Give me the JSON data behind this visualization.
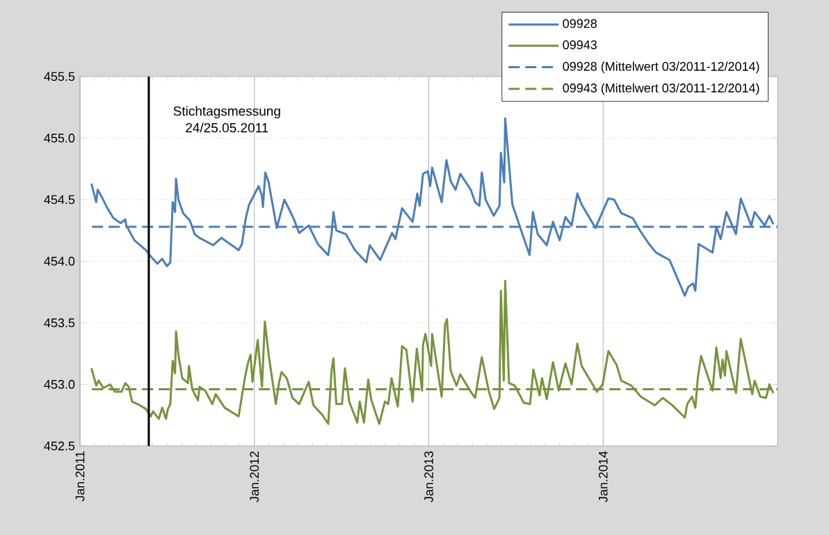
{
  "chart_data": {
    "type": "line",
    "xlim": [
      "2011-01-01",
      "2015-01-01"
    ],
    "xticks": [
      {
        "value": "2011-01-01",
        "label": "Jan.2011"
      },
      {
        "value": "2012-01-01",
        "label": "Jan.2012"
      },
      {
        "value": "2013-01-01",
        "label": "Jan.2013"
      },
      {
        "value": "2014-01-01",
        "label": "Jan.2014"
      }
    ],
    "ylim": [
      452.5,
      455.5
    ],
    "yticks": [
      452.5,
      {
        "value": 453,
        "label": "453.0"
      },
      453.5,
      {
        "value": 454,
        "label": "454.0"
      },
      454.5,
      {
        "value": 455,
        "label": "455.0"
      },
      455.5
    ],
    "grid": true,
    "legend": "top right",
    "ref_lines": [
      {
        "axis": "x",
        "value": "2011-05-25",
        "label": "Stichtagsmessung 24/25.05.2011",
        "color": "#000000"
      }
    ],
    "series": [
      {
        "name": "09928",
        "color": "#4a7ebb",
        "line_style": "solid",
        "x": [
          "2011-01-25",
          "2011-02-04",
          "2011-02-07",
          "2011-02-16",
          "2011-02-26",
          "2011-03-12",
          "2011-03-27",
          "2011-04-06",
          "2011-04-08",
          "2011-04-25",
          "2011-05-19",
          "2011-05-29",
          "2011-06-12",
          "2011-06-22",
          "2011-07-02",
          "2011-07-09",
          "2011-07-14",
          "2011-07-19",
          "2011-07-21",
          "2011-07-26",
          "2011-08-05",
          "2011-08-19",
          "2011-08-29",
          "2011-09-08",
          "2011-10-07",
          "2011-10-24",
          "2011-11-29",
          "2011-12-06",
          "2011-12-14",
          "2011-12-21",
          "2012-01-10",
          "2012-01-17",
          "2012-01-19",
          "2012-01-24",
          "2012-01-31",
          "2012-02-17",
          "2012-03-04",
          "2012-03-23",
          "2012-04-04",
          "2012-04-24",
          "2012-05-13",
          "2012-06-04",
          "2012-06-11",
          "2012-06-15",
          "2012-06-21",
          "2012-07-11",
          "2012-07-30",
          "2012-08-23",
          "2012-08-30",
          "2012-09-21",
          "2012-10-16",
          "2012-10-23",
          "2012-11-06",
          "2012-11-28",
          "2012-12-08",
          "2012-12-13",
          "2012-12-20",
          "2012-12-30",
          "2013-01-04",
          "2013-01-08",
          "2013-01-28",
          "2013-02-07",
          "2013-02-16",
          "2013-02-26",
          "2013-03-08",
          "2013-03-30",
          "2013-04-08",
          "2013-04-17",
          "2013-04-22",
          "2013-04-30",
          "2013-05-17",
          "2013-05-29",
          "2013-06-01",
          "2013-06-08",
          "2013-06-10",
          "2013-06-25",
          "2013-07-31",
          "2013-08-07",
          "2013-08-17",
          "2013-09-05",
          "2013-09-18",
          "2013-10-02",
          "2013-10-14",
          "2013-10-27",
          "2013-11-08",
          "2013-11-17",
          "2013-12-16",
          "2014-01-12",
          "2014-01-24",
          "2014-02-08",
          "2014-03-04",
          "2014-03-19",
          "2014-04-07",
          "2014-04-22",
          "2014-05-20",
          "2014-06-21",
          "2014-06-28",
          "2014-07-08",
          "2014-07-13",
          "2014-07-20",
          "2014-08-18",
          "2014-08-26",
          "2014-09-04",
          "2014-09-16",
          "2014-10-06",
          "2014-10-16",
          "2014-11-07",
          "2014-11-14",
          "2014-12-05",
          "2014-12-15",
          "2014-12-23"
        ],
        "values": [
          454.63,
          454.48,
          454.58,
          454.52,
          454.44,
          454.35,
          454.31,
          454.34,
          454.29,
          454.17,
          454.09,
          454.04,
          453.98,
          454.02,
          453.96,
          453.99,
          454.48,
          454.4,
          454.67,
          454.5,
          454.39,
          454.33,
          454.22,
          454.19,
          454.13,
          454.19,
          454.09,
          454.14,
          454.35,
          454.46,
          454.61,
          454.53,
          454.44,
          454.72,
          454.64,
          454.27,
          454.5,
          454.35,
          454.23,
          454.29,
          454.14,
          454.05,
          454.22,
          454.4,
          454.25,
          454.22,
          454.09,
          453.99,
          454.13,
          454.01,
          454.23,
          454.18,
          454.43,
          454.32,
          454.55,
          454.45,
          454.71,
          454.73,
          454.61,
          454.76,
          454.48,
          454.82,
          454.65,
          454.58,
          454.71,
          454.58,
          454.48,
          454.45,
          454.72,
          454.5,
          454.37,
          454.45,
          454.88,
          454.64,
          455.16,
          454.46,
          454.05,
          454.4,
          454.22,
          454.13,
          454.32,
          454.17,
          454.36,
          454.29,
          454.55,
          454.46,
          454.27,
          454.51,
          454.5,
          454.39,
          454.35,
          454.25,
          454.14,
          454.07,
          454.01,
          453.72,
          453.79,
          453.82,
          453.76,
          454.14,
          454.07,
          454.28,
          454.18,
          454.4,
          454.22,
          454.51,
          454.29,
          454.4,
          454.29,
          454.37,
          454.3
        ]
      },
      {
        "name": "09943",
        "color": "#77933c",
        "line_style": "solid",
        "x": [
          "2011-01-25",
          "2011-02-04",
          "2011-02-09",
          "2011-02-19",
          "2011-03-05",
          "2011-03-15",
          "2011-03-29",
          "2011-04-06",
          "2011-04-13",
          "2011-04-20",
          "2011-05-02",
          "2011-05-19",
          "2011-05-29",
          "2011-06-03",
          "2011-06-15",
          "2011-06-22",
          "2011-06-30",
          "2011-07-04",
          "2011-07-09",
          "2011-07-14",
          "2011-07-19",
          "2011-07-21",
          "2011-07-26",
          "2011-08-03",
          "2011-08-15",
          "2011-08-17",
          "2011-08-24",
          "2011-09-05",
          "2011-09-08",
          "2011-09-20",
          "2011-10-05",
          "2011-10-12",
          "2011-10-31",
          "2011-11-29",
          "2011-12-12",
          "2011-12-19",
          "2011-12-24",
          "2011-12-28",
          "2012-01-08",
          "2012-01-17",
          "2012-01-23",
          "2012-01-31",
          "2012-02-15",
          "2012-02-22",
          "2012-02-27",
          "2012-03-09",
          "2012-03-21",
          "2012-04-04",
          "2012-04-24",
          "2012-05-04",
          "2012-05-23",
          "2012-06-04",
          "2012-06-11",
          "2012-06-15",
          "2012-06-21",
          "2012-07-03",
          "2012-07-09",
          "2012-07-18",
          "2012-08-04",
          "2012-08-09",
          "2012-08-18",
          "2012-08-27",
          "2012-09-02",
          "2012-09-19",
          "2012-10-01",
          "2012-10-08",
          "2012-10-15",
          "2012-10-28",
          "2012-11-01",
          "2012-11-06",
          "2012-11-15",
          "2012-11-28",
          "2012-12-07",
          "2012-12-18",
          "2012-12-20",
          "2012-12-25",
          "2013-01-06",
          "2013-01-08",
          "2013-01-28",
          "2013-02-04",
          "2013-02-08",
          "2013-02-16",
          "2013-02-28",
          "2013-03-08",
          "2013-03-30",
          "2013-04-08",
          "2013-04-22",
          "2013-05-07",
          "2013-05-18",
          "2013-05-29",
          "2013-06-01",
          "2013-06-07",
          "2013-06-10",
          "2013-06-18",
          "2013-06-30",
          "2013-07-19",
          "2013-08-01",
          "2013-08-08",
          "2013-08-21",
          "2013-08-26",
          "2013-09-05",
          "2013-09-18",
          "2013-09-30",
          "2013-10-14",
          "2013-10-27",
          "2013-11-08",
          "2013-11-17",
          "2013-12-19",
          "2013-12-31",
          "2014-01-12",
          "2014-01-29",
          "2014-02-08",
          "2014-03-01",
          "2014-03-21",
          "2014-04-19",
          "2014-05-06",
          "2014-05-26",
          "2014-06-21",
          "2014-06-26",
          "2014-07-06",
          "2014-07-13",
          "2014-07-18",
          "2014-07-25",
          "2014-08-18",
          "2014-08-26",
          "2014-09-04",
          "2014-09-08",
          "2014-09-13",
          "2014-09-16",
          "2014-10-06",
          "2014-10-16",
          "2014-11-09",
          "2014-11-14",
          "2014-11-26",
          "2014-12-08",
          "2014-12-15",
          "2014-12-23"
        ],
        "values": [
          453.13,
          452.99,
          453.03,
          452.97,
          453.0,
          452.94,
          452.94,
          453.01,
          452.98,
          452.86,
          452.84,
          452.8,
          452.74,
          452.78,
          452.72,
          452.81,
          452.72,
          452.8,
          452.84,
          453.19,
          453.09,
          453.43,
          453.24,
          453.05,
          453.01,
          453.15,
          452.96,
          452.87,
          452.98,
          452.95,
          452.84,
          452.92,
          452.81,
          452.74,
          453.05,
          453.18,
          453.24,
          453.02,
          453.36,
          452.98,
          453.51,
          453.24,
          452.84,
          453.02,
          453.1,
          453.05,
          452.89,
          452.84,
          453.02,
          452.83,
          452.75,
          452.68,
          453.11,
          453.21,
          452.84,
          452.84,
          453.13,
          452.86,
          452.69,
          452.86,
          452.69,
          453.04,
          452.88,
          452.68,
          452.86,
          452.84,
          453.05,
          452.82,
          453.02,
          453.31,
          453.28,
          452.86,
          453.29,
          452.95,
          453.32,
          453.41,
          453.15,
          453.41,
          452.9,
          453.48,
          453.53,
          453.11,
          452.99,
          453.08,
          452.94,
          452.89,
          453.22,
          452.94,
          452.8,
          452.89,
          453.76,
          453.03,
          453.84,
          453.01,
          452.99,
          452.85,
          452.84,
          453.12,
          452.91,
          453.05,
          452.88,
          453.18,
          452.95,
          453.17,
          453.0,
          453.33,
          453.15,
          452.94,
          453.0,
          453.27,
          453.16,
          453.03,
          452.99,
          452.9,
          452.83,
          452.89,
          452.83,
          452.73,
          452.84,
          452.9,
          452.81,
          453.05,
          453.23,
          452.95,
          453.3,
          453.05,
          453.2,
          453.07,
          453.27,
          452.93,
          453.37,
          452.92,
          453.03,
          452.9,
          452.89,
          453.0,
          452.93
        ]
      },
      {
        "name": "09928 (Mittelwert 03/2011-12/2014)",
        "color": "#4a7ebb",
        "line_style": "dashed",
        "x": [
          "2011-01-26",
          "2015-01-01"
        ],
        "values": [
          454.28,
          454.28
        ]
      },
      {
        "name": "09943 (Mittelwert 03/2011-12/2014)",
        "color": "#77933c",
        "line_style": "dashed",
        "x": [
          "2011-01-26",
          "2015-01-01"
        ],
        "values": [
          452.96,
          452.96
        ]
      }
    ]
  }
}
